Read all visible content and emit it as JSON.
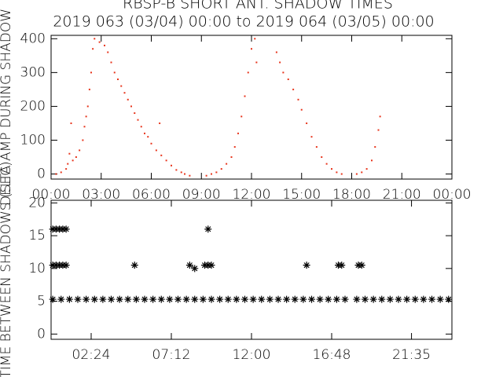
{
  "chart_data": [
    {
      "type": "scatter",
      "title": "RBSP-B SHORT ANT. SHADOW TIMES",
      "subtitle": "2019 063 (03/04) 00:00 to 2019 064 (03/05) 00:00",
      "y_label": "DELTA AMP DURING SHADOW",
      "xlim": [
        0,
        24
      ],
      "ylim": [
        -15,
        410
      ],
      "xticks": [
        {
          "value": 0,
          "label": "00:00"
        },
        {
          "value": 3,
          "label": "03:00"
        },
        {
          "value": 6,
          "label": "06:00"
        },
        {
          "value": 9,
          "label": "09:00"
        },
        {
          "value": 12,
          "label": "12:00"
        },
        {
          "value": 15,
          "label": "15:00"
        },
        {
          "value": 18,
          "label": "18:00"
        },
        {
          "value": 21,
          "label": "21:00"
        },
        {
          "value": 24,
          "label": "00:00"
        }
      ],
      "yticks": [
        0,
        100,
        200,
        300,
        400
      ],
      "marker": "dot",
      "series": [
        {
          "color": "#e8351c",
          "x": [
            0.3,
            0.6,
            0.9,
            1.0,
            1.1,
            1.2,
            1.3,
            1.5,
            1.7,
            1.9,
            2.0,
            2.1,
            2.2,
            2.3,
            2.4,
            2.5,
            2.6,
            2.9,
            3.2,
            3.4,
            3.6,
            3.8,
            4.0,
            4.2,
            4.4,
            4.6,
            4.8,
            5.0,
            5.2,
            5.4,
            5.6,
            5.8,
            6.0,
            6.3,
            6.6,
            6.9,
            7.2,
            7.5,
            7.8,
            8.0,
            8.3,
            9.3,
            9.6,
            9.9,
            10.2,
            10.5,
            10.8,
            11.0,
            11.2,
            11.4,
            11.6,
            11.8,
            12.0,
            12.2,
            12.3,
            13.5,
            13.7,
            13.9,
            14.2,
            14.5,
            14.8,
            15.0,
            15.3,
            15.6,
            15.9,
            16.2,
            16.5,
            16.8,
            17.1,
            17.4,
            18.3,
            18.6,
            18.9,
            19.2,
            19.4,
            19.6,
            19.7,
            6.5
          ],
          "values": [
            0,
            5,
            15,
            30,
            60,
            150,
            40,
            50,
            70,
            100,
            140,
            170,
            200,
            250,
            300,
            370,
            400,
            390,
            380,
            360,
            330,
            300,
            280,
            260,
            240,
            220,
            200,
            180,
            160,
            140,
            120,
            110,
            90,
            70,
            55,
            40,
            25,
            12,
            5,
            0,
            -5,
            -5,
            0,
            5,
            15,
            30,
            50,
            80,
            120,
            170,
            230,
            300,
            370,
            400,
            330,
            360,
            330,
            300,
            280,
            250,
            220,
            190,
            150,
            110,
            80,
            50,
            30,
            15,
            5,
            0,
            0,
            5,
            15,
            40,
            80,
            130,
            170,
            150
          ]
        }
      ]
    },
    {
      "type": "scatter",
      "y_label": "TIME BETWEEN SHADOWS (SEC)",
      "xlim": [
        0,
        24
      ],
      "ylim": [
        -0.8,
        20.4
      ],
      "xticks": [
        {
          "value": 2.4,
          "label": "02:24"
        },
        {
          "value": 7.2,
          "label": "07:12"
        },
        {
          "value": 12,
          "label": "12:00"
        },
        {
          "value": 16.8,
          "label": "16:48"
        },
        {
          "value": 21.58,
          "label": "21:35"
        }
      ],
      "yticks": [
        0,
        5,
        10,
        15,
        20
      ],
      "marker": "asterisk",
      "series": [
        {
          "color": "#000000",
          "x": [
            0.1,
            0.6,
            1.1,
            1.6,
            2.1,
            2.6,
            3.1,
            3.6,
            4.1,
            4.6,
            5.1,
            5.6,
            6.1,
            6.6,
            7.1,
            7.6,
            8.1,
            8.6,
            9.1,
            9.6,
            10.1,
            10.6,
            11.1,
            11.6,
            12.1,
            12.6,
            13.1,
            13.6,
            14.1,
            14.6,
            15.1,
            15.6,
            16.1,
            16.6,
            17.1,
            17.6,
            18.3,
            18.8,
            19.3,
            19.8,
            20.3,
            20.8,
            21.3,
            21.8,
            22.3,
            22.8,
            23.3,
            23.8,
            0.1,
            0.3,
            0.5,
            0.7,
            0.9,
            5.0,
            8.3,
            9.2,
            9.4,
            9.6,
            15.3,
            17.2,
            17.4,
            18.4,
            18.6,
            0.1,
            0.3,
            0.5,
            0.7,
            0.9,
            9.4,
            8.6
          ],
          "values": [
            5.3,
            5.3,
            5.3,
            5.3,
            5.3,
            5.3,
            5.3,
            5.3,
            5.3,
            5.3,
            5.3,
            5.3,
            5.3,
            5.3,
            5.3,
            5.3,
            5.3,
            5.3,
            5.3,
            5.3,
            5.3,
            5.3,
            5.3,
            5.3,
            5.3,
            5.3,
            5.3,
            5.3,
            5.3,
            5.3,
            5.3,
            5.3,
            5.3,
            5.3,
            5.3,
            5.3,
            5.3,
            5.3,
            5.3,
            5.3,
            5.3,
            5.3,
            5.3,
            5.3,
            5.3,
            5.3,
            5.3,
            5.3,
            10.5,
            10.5,
            10.5,
            10.5,
            10.5,
            10.5,
            10.5,
            10.5,
            10.5,
            10.5,
            10.5,
            10.5,
            10.5,
            10.5,
            10.5,
            16,
            16,
            16,
            16,
            16,
            16,
            10
          ]
        }
      ]
    }
  ]
}
